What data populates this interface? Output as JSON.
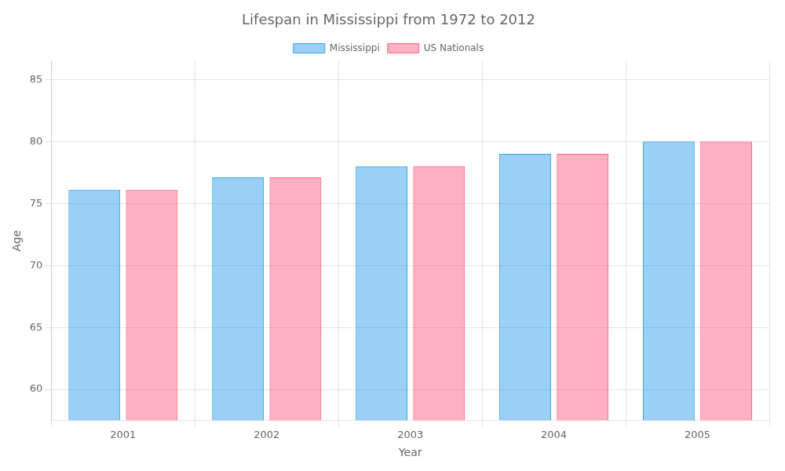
{
  "chart_data": {
    "type": "bar",
    "title": "Lifespan in Mississippi from 1972 to 2012",
    "x_label": "Year",
    "y_label": "Age",
    "categories": [
      "2001",
      "2002",
      "2003",
      "2004",
      "2005"
    ],
    "series": [
      {
        "name": "Mississippi",
        "values": [
          76.1,
          77.1,
          78.0,
          79.0,
          80.0
        ]
      },
      {
        "name": "US Nationals",
        "values": [
          76.1,
          77.1,
          78.0,
          79.0,
          80.0
        ]
      }
    ],
    "ylim": [
      57.5,
      86.5
    ],
    "yticks": [
      60,
      65,
      70,
      75,
      80,
      85
    ],
    "grid": true,
    "legend": "top"
  }
}
